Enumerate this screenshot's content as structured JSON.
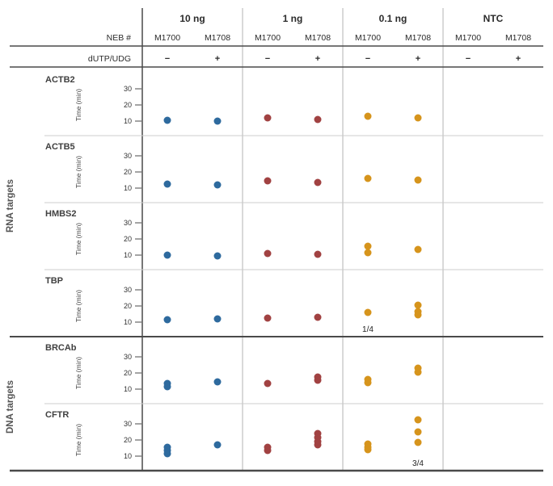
{
  "figure": {
    "doses": [
      "10 ng",
      "1 ng",
      "0.1 ng",
      "NTC"
    ],
    "neb_row_label": "NEB #",
    "neb_ids": [
      "M1700",
      "M1708"
    ],
    "udg_row_label": "dUTP/UDG",
    "udg_signs": [
      "−",
      "+"
    ],
    "groups": [
      {
        "label": "RNA targets",
        "targets": [
          "ACTB2",
          "ACTB5",
          "HMBS2",
          "TBP"
        ]
      },
      {
        "label": "DNA targets",
        "targets": [
          "BRCAb",
          "CFTR"
        ]
      }
    ],
    "y_axis": {
      "label": "Time (min)",
      "ticks": [
        10,
        20,
        30
      ]
    },
    "colors": {
      "dose_10ng": "#2e6a9e",
      "dose_1ng": "#a14242",
      "dose_0_1ng": "#d6941c",
      "ntc": null,
      "dark_line": "#4a4a4a",
      "light_line": "#cccccc",
      "divider": "#b3b3b3",
      "text": "#2b2b2b"
    },
    "chart_data": {
      "type": "scatter",
      "ylabel": "Time (min)",
      "ylim": [
        5,
        37
      ],
      "yticks": [
        10,
        20,
        30
      ],
      "legend_position": "none",
      "grid": false,
      "columns": [
        {
          "dose": "10 ng",
          "neb": "M1700",
          "udg": "−",
          "color": "#2e6a9e"
        },
        {
          "dose": "10 ng",
          "neb": "M1708",
          "udg": "+",
          "color": "#2e6a9e"
        },
        {
          "dose": "1 ng",
          "neb": "M1700",
          "udg": "−",
          "color": "#a14242"
        },
        {
          "dose": "1 ng",
          "neb": "M1708",
          "udg": "+",
          "color": "#a14242"
        },
        {
          "dose": "0.1 ng",
          "neb": "M1700",
          "udg": "−",
          "color": "#d6941c"
        },
        {
          "dose": "0.1 ng",
          "neb": "M1708",
          "udg": "+",
          "color": "#d6941c"
        },
        {
          "dose": "NTC",
          "neb": "M1700",
          "udg": "−",
          "color": null
        },
        {
          "dose": "NTC",
          "neb": "M1708",
          "udg": "+",
          "color": null
        }
      ],
      "rows": [
        {
          "target": "ACTB2",
          "group": "RNA targets",
          "values_min": [
            [
              10.5
            ],
            [
              10
            ],
            [
              12
            ],
            [
              11
            ],
            [
              13
            ],
            [
              12
            ],
            [],
            []
          ],
          "annotations": []
        },
        {
          "target": "ACTB5",
          "group": "RNA targets",
          "values_min": [
            [
              12.5
            ],
            [
              12
            ],
            [
              14.5
            ],
            [
              13.5
            ],
            [
              16
            ],
            [
              15
            ],
            [],
            []
          ],
          "annotations": []
        },
        {
          "target": "HMBS2",
          "group": "RNA targets",
          "values_min": [
            [
              10
            ],
            [
              9.5
            ],
            [
              11
            ],
            [
              10.5
            ],
            [
              15.5,
              11.5
            ],
            [
              13.5
            ],
            [],
            []
          ],
          "annotations": []
        },
        {
          "target": "TBP",
          "group": "RNA targets",
          "values_min": [
            [
              11.5
            ],
            [
              12
            ],
            [
              12.5
            ],
            [
              13
            ],
            [
              16
            ],
            [
              20.5,
              16.5,
              14.5
            ],
            [],
            []
          ],
          "annotations": [
            {
              "column": 4,
              "text": "1/4"
            }
          ]
        },
        {
          "target": "BRCAb",
          "group": "DNA targets",
          "values_min": [
            [
              13.5,
              11.5
            ],
            [
              14.5
            ],
            [
              13.5
            ],
            [
              17.5,
              15.5
            ],
            [
              16,
              14
            ],
            [
              23,
              20.5
            ],
            [],
            []
          ],
          "annotations": []
        },
        {
          "target": "CFTR",
          "group": "DNA targets",
          "values_min": [
            [
              15.5,
              13.5,
              11.5
            ],
            [
              17
            ],
            [
              15.5,
              13.5
            ],
            [
              24,
              21.5,
              19,
              17
            ],
            [
              17.5,
              15.5,
              14
            ],
            [
              32.5,
              25,
              18.5
            ],
            [],
            []
          ],
          "annotations": [
            {
              "column": 5,
              "text": "3/4"
            }
          ]
        }
      ]
    }
  }
}
